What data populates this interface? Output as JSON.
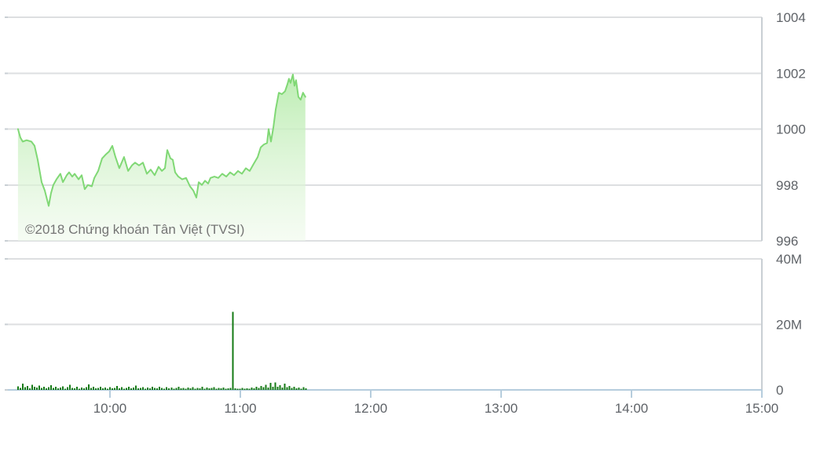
{
  "watermark": "©2018 Chứng khoán Tân Việt (TVSI)",
  "colors": {
    "background": "#ffffff",
    "grid": "#dddfe1",
    "panel_border": "#c9cfd4",
    "axis_text": "#5f6368",
    "baseline_blue": "#b6cddd",
    "watermark_text": "#757575",
    "price_line": "#80d875",
    "price_fill_top": "#b5ebaa",
    "price_fill_bottom": "#eef9ea",
    "volume_bar": "#147a14"
  },
  "chart_data": [
    {
      "type": "area",
      "title": "",
      "xlabel": "",
      "ylabel": "",
      "x_unit": "hour_of_day",
      "xlim": [
        9.217,
        15.0
      ],
      "ylim": [
        996,
        1004
      ],
      "grid": "horizontal",
      "legend": "none",
      "y_ticks": [
        1004,
        1002,
        1000,
        998,
        996
      ],
      "x_ticks": [
        {
          "hour": 10,
          "label": "10:00"
        },
        {
          "hour": 11,
          "label": "11:00"
        },
        {
          "hour": 12,
          "label": "12:00"
        },
        {
          "hour": 13,
          "label": "13:00"
        },
        {
          "hour": 14,
          "label": "14:00"
        },
        {
          "hour": 15,
          "label": "15:00"
        }
      ],
      "points": [
        [
          9.295,
          1000.0
        ],
        [
          9.313,
          999.7
        ],
        [
          9.331,
          999.55
        ],
        [
          9.361,
          999.6
        ],
        [
          9.398,
          999.55
        ],
        [
          9.422,
          999.4
        ],
        [
          9.446,
          998.9
        ],
        [
          9.476,
          998.1
        ],
        [
          9.5,
          997.8
        ],
        [
          9.53,
          997.25
        ],
        [
          9.548,
          997.7
        ],
        [
          9.566,
          998.0
        ],
        [
          9.59,
          998.2
        ],
        [
          9.62,
          998.4
        ],
        [
          9.639,
          998.1
        ],
        [
          9.669,
          998.35
        ],
        [
          9.687,
          998.45
        ],
        [
          9.711,
          998.3
        ],
        [
          9.729,
          998.4
        ],
        [
          9.759,
          998.2
        ],
        [
          9.783,
          998.35
        ],
        [
          9.807,
          997.85
        ],
        [
          9.831,
          998.0
        ],
        [
          9.861,
          997.95
        ],
        [
          9.88,
          998.25
        ],
        [
          9.91,
          998.5
        ],
        [
          9.94,
          998.95
        ],
        [
          9.97,
          999.1
        ],
        [
          9.994,
          999.2
        ],
        [
          10.018,
          999.4
        ],
        [
          10.042,
          999.0
        ],
        [
          10.072,
          998.6
        ],
        [
          10.108,
          999.0
        ],
        [
          10.139,
          998.5
        ],
        [
          10.169,
          998.7
        ],
        [
          10.193,
          998.8
        ],
        [
          10.223,
          998.7
        ],
        [
          10.253,
          998.8
        ],
        [
          10.283,
          998.4
        ],
        [
          10.313,
          998.55
        ],
        [
          10.343,
          998.35
        ],
        [
          10.373,
          998.65
        ],
        [
          10.398,
          998.5
        ],
        [
          10.422,
          998.6
        ],
        [
          10.44,
          999.25
        ],
        [
          10.464,
          998.95
        ],
        [
          10.482,
          998.9
        ],
        [
          10.5,
          998.45
        ],
        [
          10.524,
          998.3
        ],
        [
          10.554,
          998.2
        ],
        [
          10.584,
          998.25
        ],
        [
          10.614,
          997.95
        ],
        [
          10.639,
          997.8
        ],
        [
          10.663,
          997.55
        ],
        [
          10.681,
          998.1
        ],
        [
          10.705,
          998.0
        ],
        [
          10.729,
          998.15
        ],
        [
          10.753,
          998.05
        ],
        [
          10.771,
          998.25
        ],
        [
          10.801,
          998.3
        ],
        [
          10.831,
          998.25
        ],
        [
          10.861,
          998.4
        ],
        [
          10.892,
          998.3
        ],
        [
          10.922,
          998.45
        ],
        [
          10.952,
          998.35
        ],
        [
          10.982,
          998.5
        ],
        [
          11.012,
          998.4
        ],
        [
          11.042,
          998.6
        ],
        [
          11.072,
          998.5
        ],
        [
          11.102,
          998.75
        ],
        [
          11.133,
          999.0
        ],
        [
          11.157,
          999.35
        ],
        [
          11.181,
          999.45
        ],
        [
          11.205,
          999.5
        ],
        [
          11.217,
          1000.0
        ],
        [
          11.235,
          999.55
        ],
        [
          11.253,
          1000.05
        ],
        [
          11.271,
          1000.7
        ],
        [
          11.295,
          1001.3
        ],
        [
          11.319,
          1001.25
        ],
        [
          11.343,
          1001.35
        ],
        [
          11.361,
          1001.6
        ],
        [
          11.373,
          1001.8
        ],
        [
          11.385,
          1001.65
        ],
        [
          11.403,
          1001.95
        ],
        [
          11.415,
          1001.55
        ],
        [
          11.427,
          1001.75
        ],
        [
          11.445,
          1001.15
        ],
        [
          11.463,
          1001.05
        ],
        [
          11.481,
          1001.3
        ],
        [
          11.499,
          1001.15
        ]
      ]
    },
    {
      "type": "bar",
      "title": "",
      "xlabel": "",
      "ylabel": "",
      "ylim": [
        0,
        40000000
      ],
      "y_ticks": [
        {
          "value": 40,
          "label": "40M"
        },
        {
          "value": 20,
          "label": "20M"
        },
        {
          "value": 0,
          "label": "0"
        }
      ],
      "start_hour": 9.295,
      "interval_hours": 0.0181,
      "values_millions": [
        1.1,
        0.6,
        1.9,
        0.8,
        1.2,
        0.5,
        1.6,
        0.9,
        0.7,
        1.3,
        0.6,
        1.0,
        0.5,
        0.8,
        1.4,
        0.6,
        0.9,
        0.5,
        0.7,
        1.1,
        0.4,
        0.8,
        1.5,
        0.6,
        0.5,
        0.9,
        0.4,
        0.7,
        0.5,
        0.8,
        1.7,
        0.6,
        0.9,
        0.5,
        0.6,
        1.0,
        0.5,
        0.7,
        0.4,
        0.8,
        0.5,
        0.6,
        1.2,
        0.5,
        0.8,
        0.4,
        0.6,
        0.9,
        0.5,
        0.7,
        1.3,
        0.5,
        0.6,
        0.8,
        0.4,
        0.7,
        0.5,
        0.9,
        0.6,
        0.5,
        1.0,
        0.6,
        0.4,
        0.8,
        0.5,
        0.7,
        0.4,
        0.6,
        0.9,
        0.5,
        0.6,
        0.4,
        0.7,
        0.5,
        0.8,
        0.4,
        0.6,
        0.5,
        0.9,
        0.4,
        0.7,
        0.5,
        0.6,
        0.8,
        0.4,
        0.6,
        0.5,
        0.7,
        0.4,
        0.5,
        0.6,
        23.8,
        0.5,
        0.3,
        0.4,
        0.6,
        0.3,
        0.5,
        0.4,
        0.7,
        0.5,
        0.9,
        0.6,
        1.2,
        0.8,
        1.6,
        0.7,
        2.1,
        1.0,
        2.3,
        0.9,
        1.4,
        0.7,
        1.9,
        0.8,
        1.2,
        0.6,
        0.9,
        0.5,
        0.7,
        0.4,
        0.8,
        0.5
      ]
    }
  ]
}
